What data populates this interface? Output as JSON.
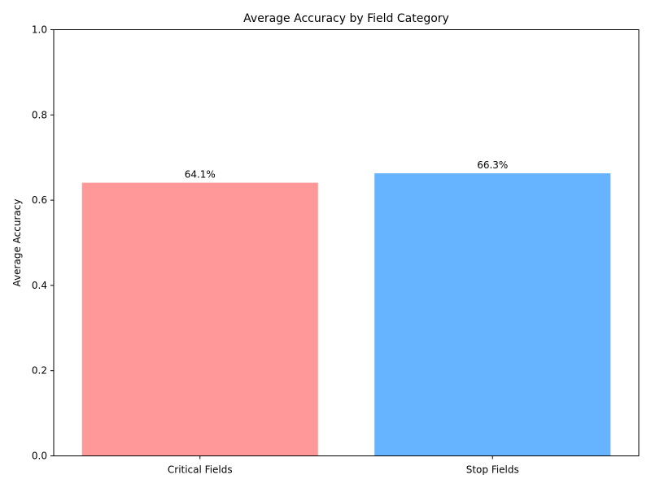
{
  "chart_data": {
    "type": "bar",
    "title": "Average Accuracy by Field Category",
    "xlabel": "",
    "ylabel": "Average Accuracy",
    "categories": [
      "Critical Fields",
      "Stop Fields"
    ],
    "values": [
      0.641,
      0.663
    ],
    "data_labels": [
      "64.1%",
      "66.3%"
    ],
    "colors": [
      "#ff9999",
      "#66b3ff"
    ],
    "ylim": [
      0,
      1
    ],
    "yticks": [
      0,
      0.2,
      0.4,
      0.6,
      0.8,
      1
    ],
    "ytick_labels": [
      "0.0",
      "0.2",
      "0.4",
      "0.6",
      "0.8",
      "1.0"
    ],
    "grid": false,
    "legend": "none"
  }
}
